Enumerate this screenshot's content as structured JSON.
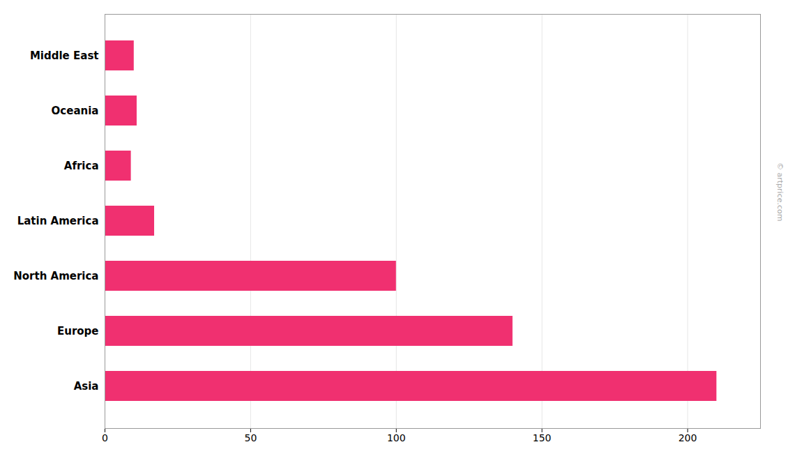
{
  "chart_data": {
    "type": "bar",
    "orientation": "horizontal",
    "categories": [
      "Middle East",
      "Oceania",
      "Africa",
      "Latin America",
      "North America",
      "Europe",
      "Asia"
    ],
    "values": [
      10,
      11,
      9,
      17,
      100,
      140,
      210
    ],
    "color": "#f03070",
    "xlim": [
      0,
      225
    ],
    "xticks": [
      0,
      50,
      100,
      150,
      200
    ],
    "grid": true,
    "annotations": [
      "© artprice.com"
    ]
  }
}
